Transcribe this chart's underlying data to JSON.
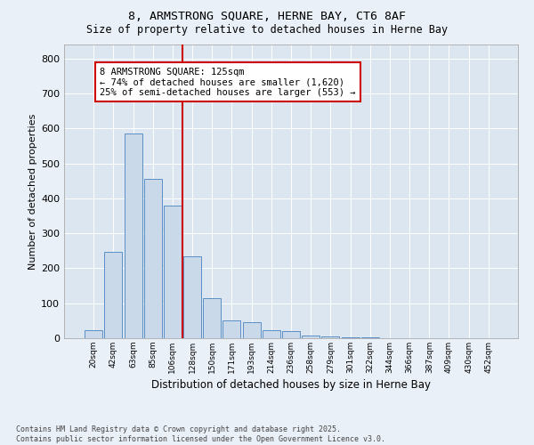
{
  "title1": "8, ARMSTRONG SQUARE, HERNE BAY, CT6 8AF",
  "title2": "Size of property relative to detached houses in Herne Bay",
  "xlabel": "Distribution of detached houses by size in Herne Bay",
  "ylabel": "Number of detached properties",
  "categories": [
    "20sqm",
    "42sqm",
    "63sqm",
    "85sqm",
    "106sqm",
    "128sqm",
    "150sqm",
    "171sqm",
    "193sqm",
    "214sqm",
    "236sqm",
    "258sqm",
    "279sqm",
    "301sqm",
    "322sqm",
    "344sqm",
    "366sqm",
    "387sqm",
    "409sqm",
    "430sqm",
    "452sqm"
  ],
  "values": [
    22,
    248,
    585,
    455,
    380,
    235,
    115,
    50,
    45,
    22,
    20,
    8,
    5,
    3,
    2,
    1,
    1,
    0,
    0,
    0,
    0
  ],
  "bar_color": "#c9d9ea",
  "bar_edge_color": "#5b8fc4",
  "marker_line_color": "#cc0000",
  "annotation_line1": "8 ARMSTRONG SQUARE: 125sqm",
  "annotation_line2": "← 74% of detached houses are smaller (1,620)",
  "annotation_line3": "25% of semi-detached houses are larger (553) →",
  "annotation_box_color": "#cc0000",
  "ylim": [
    0,
    840
  ],
  "yticks": [
    0,
    100,
    200,
    300,
    400,
    500,
    600,
    700,
    800
  ],
  "footer1": "Contains HM Land Registry data © Crown copyright and database right 2025.",
  "footer2": "Contains public sector information licensed under the Open Government Licence v3.0.",
  "bg_color": "#eaf0f8",
  "plot_bg_color": "#dce6f1",
  "grid_color": "#ffffff",
  "title1_fontsize": 9.5,
  "title2_fontsize": 8.5
}
